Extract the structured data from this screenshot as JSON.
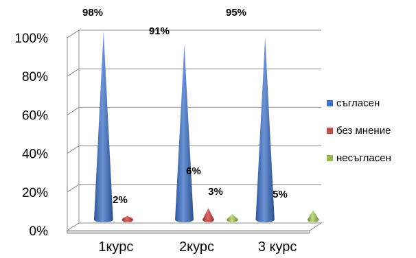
{
  "chart_data": {
    "type": "bar",
    "style": "3d-cone",
    "categories": [
      "1курс",
      "2курс",
      "3 курс"
    ],
    "series": [
      {
        "name": "съгласен",
        "color": "#4472C4",
        "values": [
          98,
          91,
          95
        ],
        "labels": [
          "98%",
          "91%",
          "95%"
        ]
      },
      {
        "name": "без мнение",
        "color": "#C0504D",
        "values": [
          2,
          6,
          0
        ],
        "labels": [
          "2%",
          "6%",
          ""
        ]
      },
      {
        "name": "несъгласен",
        "color": "#9BBB59",
        "values": [
          0,
          3,
          5
        ],
        "labels": [
          "",
          "3%",
          "5%"
        ]
      }
    ],
    "ylim": [
      0,
      100
    ],
    "yticks": [
      "0%",
      "20%",
      "40%",
      "60%",
      "80%",
      "100%"
    ],
    "grid": true,
    "legend_position": "right",
    "title": "",
    "xlabel": "",
    "ylabel": ""
  }
}
